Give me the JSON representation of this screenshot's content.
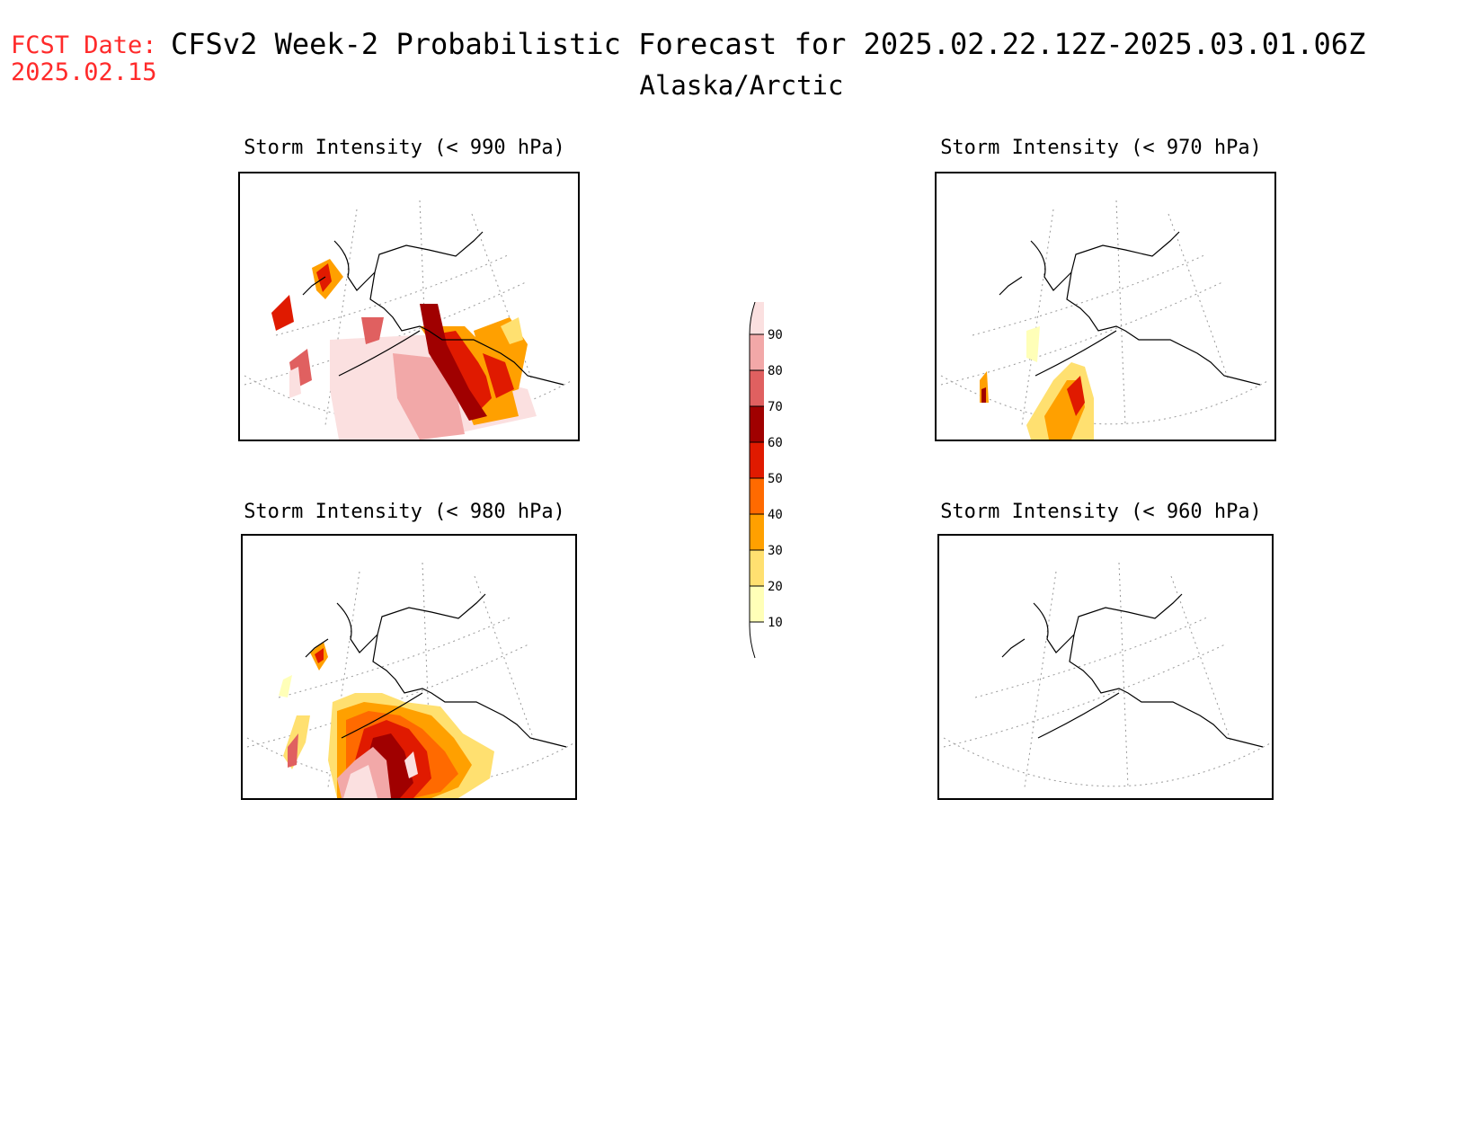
{
  "header": {
    "fcst_label": "FCST Date:",
    "fcst_date": "2025.02.15",
    "title": "CFSv2 Week-2 Probabilistic Forecast for 2025.02.22.12Z-2025.03.01.06Z",
    "subtitle": "Alaska/Arctic"
  },
  "panels": [
    {
      "title": "Storm Intensity (< 990 hPa)"
    },
    {
      "title": "Storm Intensity (< 970 hPa)"
    },
    {
      "title": "Storm Intensity (< 980 hPa)"
    },
    {
      "title": "Storm Intensity (< 960 hPa)"
    }
  ],
  "colorbar": {
    "labels": [
      "90",
      "80",
      "70",
      "60",
      "50",
      "40",
      "30",
      "20",
      "10"
    ],
    "colors": [
      "#fbe0e0",
      "#f2a8a8",
      "#e06060",
      "#a00000",
      "#e01a00",
      "#ff6a00",
      "#ffa000",
      "#ffe070",
      "#ffffb8"
    ]
  },
  "colors": {
    "fcst": "#ff2a2a"
  }
}
